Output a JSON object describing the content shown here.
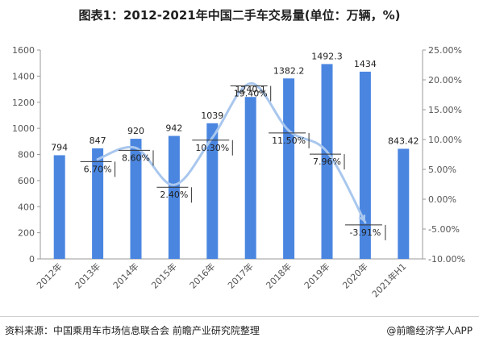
{
  "title": "图表1：2012-2021年中国二手车交易量(单位：万辆，%)",
  "footer": {
    "source": "资料来源：中国乘用车市场信息联合会 前瞻产业研究院整理",
    "brand": "@前瞻经济学人APP"
  },
  "colors": {
    "bar": "#4a86e0",
    "line": "#a9c7ee",
    "axis_text": "#555555",
    "label": "#222222",
    "grid": "#d9d9d9"
  },
  "chart_data": {
    "type": "bar",
    "categories": [
      "2012年",
      "2013年",
      "2014年",
      "2015年",
      "2016年",
      "2017年",
      "2018年",
      "2019年",
      "2020年",
      "2021年H1"
    ],
    "series": [
      {
        "values": [
          794,
          847,
          920,
          942,
          1039,
          1240.1,
          1382.2,
          1492.3,
          1434,
          843.42
        ],
        "axis": "left",
        "kind": "bar"
      },
      {
        "values": [
          null,
          6.7,
          8.6,
          2.4,
          10.3,
          19.4,
          11.5,
          7.96,
          -3.91,
          null
        ],
        "axis": "right",
        "kind": "line"
      }
    ],
    "bar_labels": [
      "794",
      "847",
      "920",
      "942",
      "1039",
      "1240.1",
      "1382.2",
      "1492.3",
      "1434",
      "843.42"
    ],
    "line_labels": [
      "",
      "6.70%",
      "8.60%",
      "2.40%",
      "10.30%",
      "19.40%",
      "11.50%",
      "7.96%",
      "-3.91%",
      ""
    ],
    "ylim": [
      0,
      1600
    ],
    "yticks": [
      "0",
      "200",
      "400",
      "600",
      "800",
      "1000",
      "1200",
      "1400",
      "1600"
    ],
    "y2lim": [
      -10,
      25
    ],
    "y2ticks": [
      "-10.00%",
      "-5.00%",
      "0.00%",
      "5.00%",
      "10.00%",
      "15.00%",
      "20.00%",
      "25.00%"
    ],
    "grid": false,
    "legend": "none"
  }
}
